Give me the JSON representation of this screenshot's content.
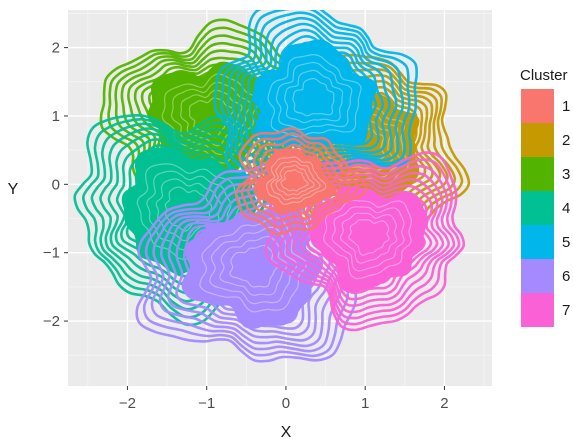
{
  "chart_data": {
    "type": "contour-density",
    "title": "",
    "xlabel": "X",
    "ylabel": "Y",
    "xlim": [
      -2.75,
      2.6
    ],
    "ylim": [
      -2.95,
      2.55
    ],
    "xticks": [
      -2,
      -1,
      0,
      1,
      2
    ],
    "yticks": [
      -2,
      -1,
      0,
      1,
      2
    ],
    "xtick_labels": [
      "−2",
      "−1",
      "0",
      "1",
      "2"
    ],
    "ytick_labels": [
      "−2",
      "−1",
      "0",
      "1",
      "2"
    ],
    "grid": true,
    "panel_background": "#ebebeb",
    "legend": {
      "title": "Cluster",
      "position": "right"
    },
    "series": [
      {
        "name": "1",
        "color": "#F8766D",
        "center": [
          0.1,
          0.05
        ],
        "radius": 0.55,
        "n_rings": 5,
        "draw_order": 2
      },
      {
        "name": "2",
        "color": "#C49A00",
        "center": [
          1.0,
          0.55
        ],
        "radius": 0.9,
        "n_rings": 8,
        "draw_order": 1
      },
      {
        "name": "3",
        "color": "#53B400",
        "center": [
          -0.95,
          1.0
        ],
        "radius": 0.95,
        "n_rings": 8,
        "draw_order": 1
      },
      {
        "name": "4",
        "color": "#00C094",
        "center": [
          -1.25,
          -0.35
        ],
        "radius": 1.05,
        "n_rings": 8,
        "draw_order": 1
      },
      {
        "name": "5",
        "color": "#00B6EB",
        "center": [
          0.35,
          1.25
        ],
        "radius": 0.95,
        "n_rings": 8,
        "draw_order": 1
      },
      {
        "name": "6",
        "color": "#A58AFF",
        "center": [
          -0.4,
          -1.2
        ],
        "radius": 1.05,
        "n_rings": 8,
        "draw_order": 1
      },
      {
        "name": "7",
        "color": "#FB61D7",
        "center": [
          1.05,
          -0.75
        ],
        "radius": 0.9,
        "n_rings": 8,
        "draw_order": 1
      }
    ]
  }
}
